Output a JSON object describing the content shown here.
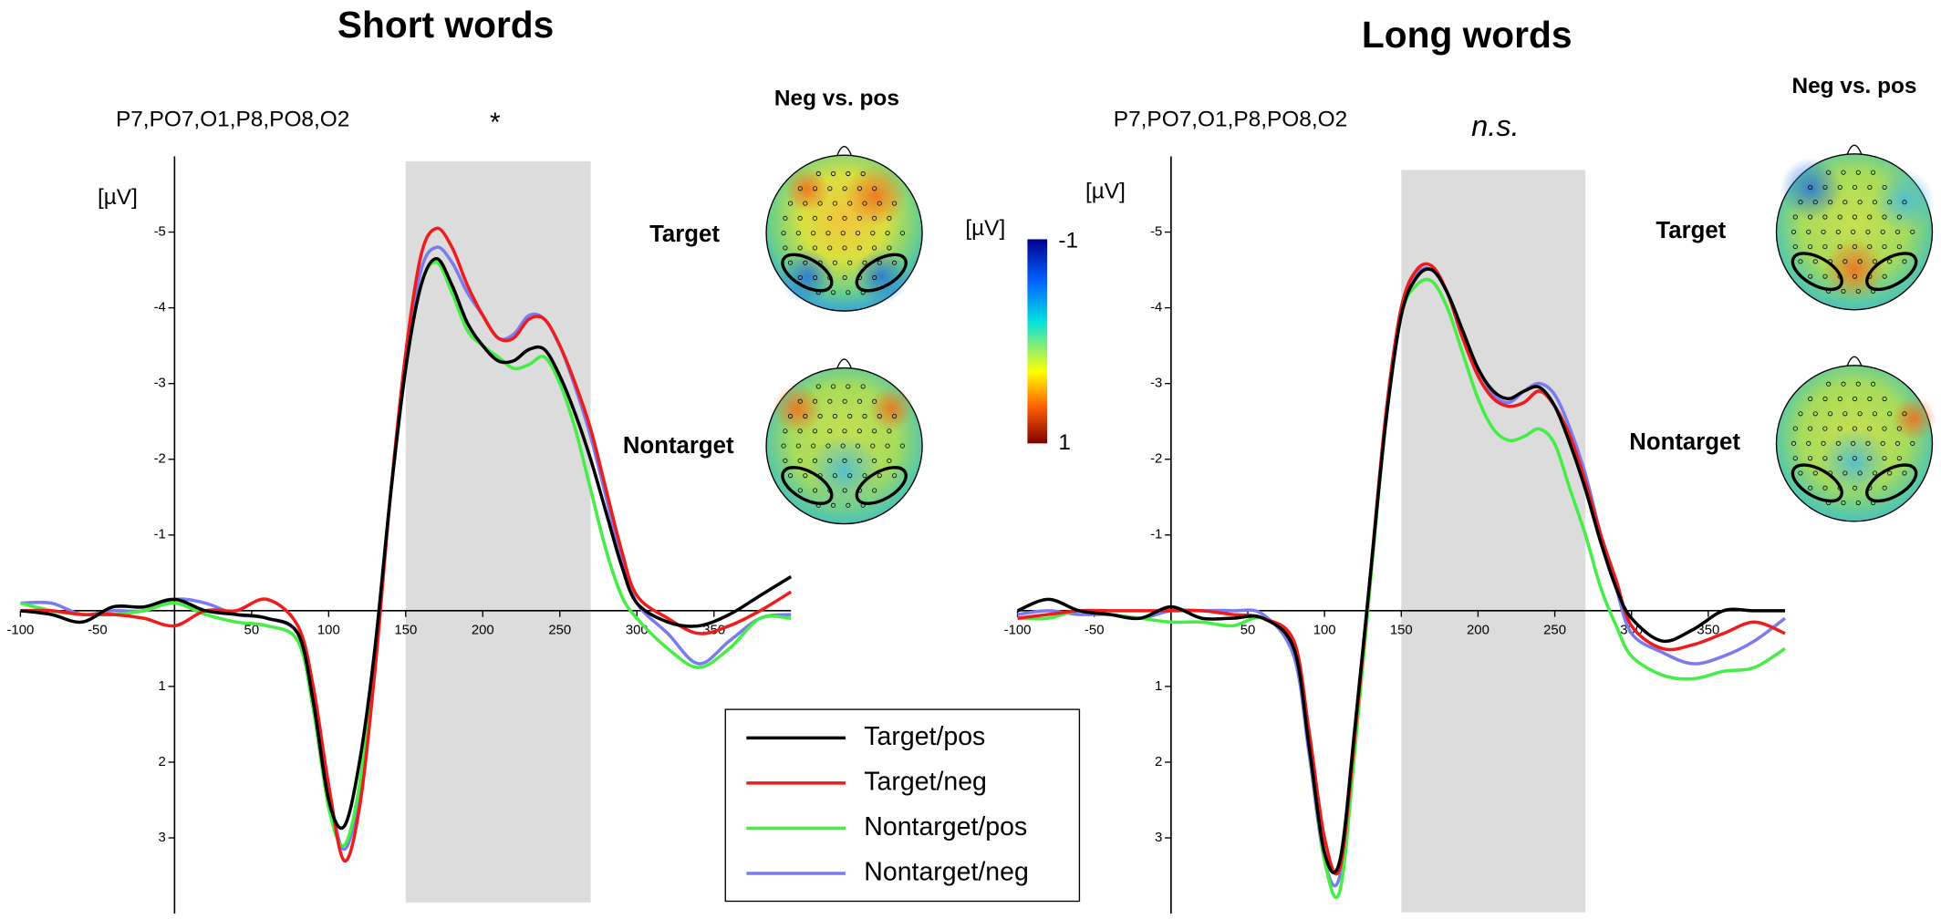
{
  "chart_data": [
    {
      "type": "line",
      "title": "Short words",
      "subtitle": "P7,PO7,O1,P8,PO8,O2",
      "annotation": "*",
      "y_label": "[µV]",
      "topomap_title": "Neg vs. pos",
      "topomap_rows": [
        "Target",
        "Nontarget"
      ],
      "colorbar": {
        "label": "[µV]",
        "ticks": [
          -1,
          1
        ]
      },
      "shade": [
        150,
        270
      ],
      "xlim": [
        -100,
        400
      ],
      "ylim": [
        4,
        -6
      ],
      "xticks": [
        -100,
        -50,
        50,
        100,
        150,
        200,
        250,
        300,
        350
      ],
      "yticks": [
        -5,
        -4,
        -3,
        -2,
        -1,
        1,
        2,
        3
      ],
      "x": [
        -100,
        -80,
        -60,
        -40,
        -20,
        0,
        20,
        40,
        60,
        80,
        90,
        100,
        110,
        120,
        130,
        140,
        150,
        160,
        170,
        180,
        190,
        200,
        210,
        220,
        230,
        240,
        250,
        260,
        270,
        280,
        290,
        300,
        320,
        340,
        360,
        380,
        400
      ],
      "series": [
        {
          "name": "Target/pos",
          "color": "#000000",
          "values": [
            0,
            0.05,
            0.15,
            -0.05,
            -0.05,
            -0.15,
            0,
            0.05,
            0.1,
            0.3,
            1.2,
            2.5,
            2.85,
            2.0,
            0.5,
            -1.5,
            -3.2,
            -4.3,
            -4.65,
            -4.3,
            -3.8,
            -3.5,
            -3.3,
            -3.3,
            -3.45,
            -3.45,
            -3.1,
            -2.6,
            -2.0,
            -1.3,
            -0.6,
            -0.1,
            0.15,
            0.2,
            0.05,
            -0.2,
            -0.45
          ]
        },
        {
          "name": "Target/neg",
          "color": "#ee1c1c",
          "values": [
            0,
            0,
            0.05,
            0.05,
            0.1,
            0.2,
            0,
            0,
            -0.15,
            0.2,
            1.0,
            2.3,
            3.3,
            2.6,
            0.8,
            -1.5,
            -3.4,
            -4.7,
            -5.05,
            -4.8,
            -4.3,
            -3.9,
            -3.6,
            -3.6,
            -3.85,
            -3.85,
            -3.5,
            -3.0,
            -2.4,
            -1.6,
            -0.8,
            -0.2,
            0.1,
            0.3,
            0.2,
            0.0,
            -0.25
          ]
        },
        {
          "name": "Nontarget/pos",
          "color": "#44ee44",
          "values": [
            -0.1,
            0,
            0.05,
            0.05,
            0,
            -0.1,
            0.05,
            0.15,
            0.2,
            0.4,
            1.3,
            2.6,
            3.1,
            2.3,
            0.6,
            -1.5,
            -3.2,
            -4.3,
            -4.6,
            -4.2,
            -3.7,
            -3.5,
            -3.35,
            -3.2,
            -3.25,
            -3.35,
            -3.0,
            -2.4,
            -1.6,
            -0.8,
            -0.2,
            0.1,
            0.5,
            0.75,
            0.5,
            0.1,
            0.1
          ]
        },
        {
          "name": "Nontarget/neg",
          "color": "#7b7bf0",
          "values": [
            -0.1,
            -0.1,
            0.05,
            0,
            0,
            -0.15,
            -0.1,
            0.05,
            0.1,
            0.3,
            1.1,
            2.4,
            3.15,
            2.4,
            0.7,
            -1.5,
            -3.3,
            -4.5,
            -4.8,
            -4.6,
            -4.2,
            -3.9,
            -3.6,
            -3.65,
            -3.9,
            -3.85,
            -3.5,
            -2.95,
            -2.3,
            -1.5,
            -0.7,
            -0.1,
            0.3,
            0.7,
            0.4,
            0.1,
            0.05
          ]
        }
      ]
    },
    {
      "type": "line",
      "title": "Long words",
      "subtitle": "P7,PO7,O1,P8,PO8,O2",
      "annotation": "n.s.",
      "y_label": "[µV]",
      "topomap_title": "Neg vs. pos",
      "topomap_rows": [
        "Target",
        "Nontarget"
      ],
      "shade": [
        150,
        270
      ],
      "xlim": [
        -100,
        400
      ],
      "ylim": [
        4,
        -6
      ],
      "xticks": [
        -100,
        -50,
        50,
        100,
        150,
        200,
        250,
        300,
        350
      ],
      "yticks": [
        -5,
        -4,
        -3,
        -2,
        -1,
        1,
        2,
        3
      ],
      "x": [
        -100,
        -80,
        -60,
        -40,
        -20,
        0,
        20,
        40,
        60,
        80,
        90,
        100,
        110,
        120,
        130,
        140,
        150,
        160,
        170,
        180,
        190,
        200,
        210,
        220,
        230,
        240,
        250,
        260,
        270,
        280,
        290,
        300,
        320,
        340,
        360,
        380,
        400
      ],
      "series": [
        {
          "color": "#000000",
          "values": [
            0,
            -0.15,
            0,
            0.05,
            0.1,
            -0.05,
            0.1,
            0.1,
            0.1,
            0.5,
            1.8,
            3.2,
            3.3,
            1.5,
            -0.5,
            -2.5,
            -3.9,
            -4.4,
            -4.5,
            -4.2,
            -3.7,
            -3.2,
            -2.9,
            -2.8,
            -2.9,
            -2.95,
            -2.7,
            -2.2,
            -1.6,
            -0.9,
            -0.3,
            0.1,
            0.4,
            0.25,
            0.0,
            0.0,
            0.0
          ]
        },
        {
          "color": "#ee1c1c",
          "values": [
            0.1,
            0.05,
            0,
            0,
            0,
            0,
            0,
            0.05,
            0.1,
            0.4,
            1.6,
            3.0,
            3.4,
            1.6,
            -0.5,
            -2.6,
            -4.0,
            -4.5,
            -4.55,
            -4.2,
            -3.6,
            -3.1,
            -2.8,
            -2.7,
            -2.75,
            -2.9,
            -2.7,
            -2.3,
            -1.7,
            -1.0,
            -0.4,
            0.2,
            0.5,
            0.45,
            0.3,
            0.15,
            0.3
          ]
        },
        {
          "color": "#44ee44",
          "values": [
            0.1,
            0.1,
            0,
            0.05,
            0.1,
            0.15,
            0.15,
            0.2,
            0.1,
            0.5,
            1.8,
            3.3,
            3.7,
            1.8,
            -0.4,
            -2.5,
            -3.9,
            -4.3,
            -4.35,
            -4.0,
            -3.4,
            -2.8,
            -2.4,
            -2.25,
            -2.3,
            -2.4,
            -2.2,
            -1.6,
            -1.0,
            -0.3,
            0.2,
            0.6,
            0.85,
            0.9,
            0.8,
            0.75,
            0.5
          ]
        },
        {
          "color": "#7b7bf0",
          "values": [
            0.05,
            0,
            0.05,
            0.05,
            0.1,
            0,
            0,
            0,
            0.05,
            0.6,
            1.9,
            3.3,
            3.5,
            1.6,
            -0.5,
            -2.6,
            -4.0,
            -4.45,
            -4.5,
            -4.2,
            -3.6,
            -3.2,
            -2.85,
            -2.75,
            -2.9,
            -3.0,
            -2.85,
            -2.4,
            -1.8,
            -1.0,
            -0.3,
            0.3,
            0.55,
            0.7,
            0.6,
            0.4,
            0.1
          ]
        }
      ]
    }
  ]
}
